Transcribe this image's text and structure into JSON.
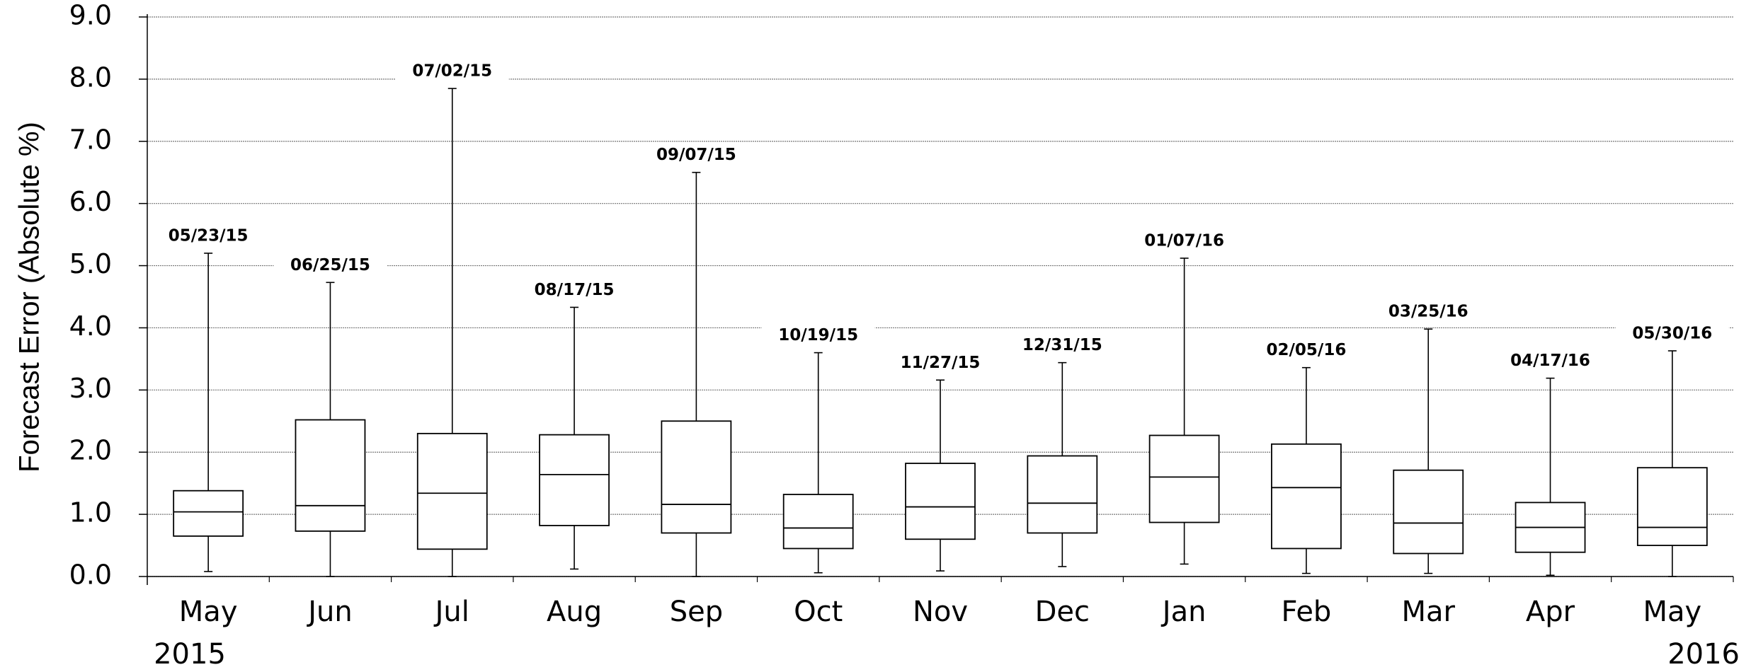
{
  "chart_data": {
    "type": "box",
    "y_label": "Forecast Error  (Absolute %)",
    "categories": [
      "May",
      "Jun",
      "Jul",
      "Aug",
      "Sep",
      "Oct",
      "Nov",
      "Dec",
      "Jan",
      "Feb",
      "Mar",
      "Apr",
      "May"
    ],
    "year_labels": [
      "2015",
      "2016"
    ],
    "min": [
      0.08,
      0.0,
      0.0,
      0.12,
      0.0,
      0.06,
      0.09,
      0.16,
      0.2,
      0.05,
      0.05,
      0.02,
      0.0
    ],
    "q1": [
      0.65,
      0.73,
      0.44,
      0.82,
      0.7,
      0.45,
      0.6,
      0.7,
      0.87,
      0.45,
      0.37,
      0.39,
      0.5
    ],
    "median": [
      1.04,
      1.14,
      1.34,
      1.64,
      1.16,
      0.78,
      1.12,
      1.18,
      1.6,
      1.43,
      0.86,
      0.79,
      0.79
    ],
    "q3": [
      1.38,
      2.52,
      2.3,
      2.28,
      2.5,
      1.32,
      1.82,
      1.94,
      2.27,
      2.13,
      1.71,
      1.19,
      1.75
    ],
    "max": [
      5.2,
      4.73,
      7.85,
      4.33,
      6.5,
      3.6,
      3.16,
      3.44,
      5.12,
      3.36,
      3.98,
      3.19,
      3.63
    ],
    "max_dates": [
      "05/23/15",
      "06/25/15",
      "07/02/15",
      "08/17/15",
      "09/07/15",
      "10/19/15",
      "11/27/15",
      "12/31/15",
      "01/07/16",
      "02/05/16",
      "03/25/16",
      "04/17/16",
      "05/30/16"
    ],
    "ylim": [
      0,
      9
    ],
    "yticks": [
      {
        "value": 0,
        "label": "0.0"
      },
      {
        "value": 1,
        "label": "1.0"
      },
      {
        "value": 2,
        "label": "2.0"
      },
      {
        "value": 3,
        "label": "3.0"
      },
      {
        "value": 4,
        "label": "4.0"
      },
      {
        "value": 5,
        "label": "5.0"
      },
      {
        "value": 6,
        "label": "6.0"
      },
      {
        "value": 7,
        "label": "7.0"
      },
      {
        "value": 8,
        "label": "8.0"
      },
      {
        "value": 9,
        "label": "9.0"
      }
    ],
    "grid": true,
    "color": "#000000"
  }
}
